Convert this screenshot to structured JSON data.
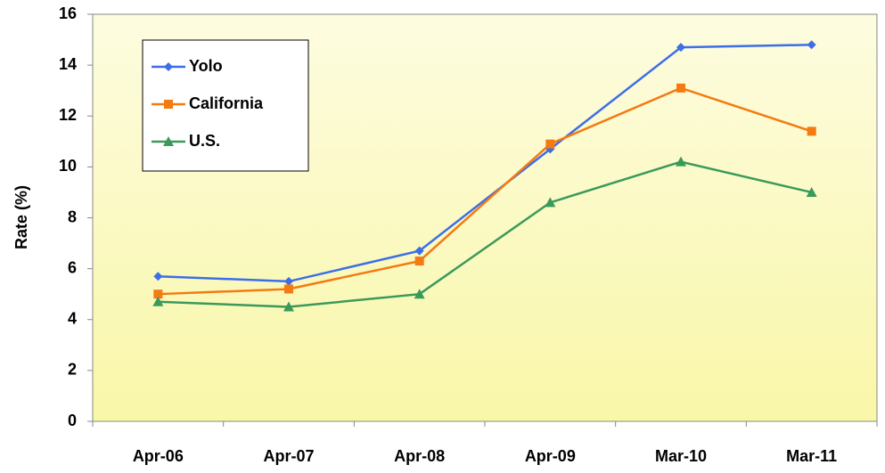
{
  "chart_data": {
    "type": "line",
    "y_label": "Rate (%)",
    "categories": [
      "Apr-06",
      "Apr-07",
      "Apr-08",
      "Apr-09",
      "Mar-10",
      "Mar-11"
    ],
    "series": [
      {
        "name": "Yolo",
        "color": "#3d6ee8",
        "marker": "diamond",
        "values": [
          5.7,
          5.5,
          6.7,
          10.7,
          14.7,
          14.8
        ]
      },
      {
        "name": "California",
        "color": "#f47a12",
        "marker": "square",
        "values": [
          5.0,
          5.2,
          6.3,
          10.9,
          13.1,
          11.4
        ]
      },
      {
        "name": "U.S.",
        "color": "#3a9a5a",
        "marker": "triangle",
        "values": [
          4.7,
          4.5,
          5.0,
          8.6,
          10.2,
          9.0
        ]
      }
    ],
    "ylim": [
      0,
      16
    ],
    "yticks": [
      0,
      2,
      4,
      6,
      8,
      10,
      12,
      14,
      16
    ],
    "legend": "upper-left"
  }
}
